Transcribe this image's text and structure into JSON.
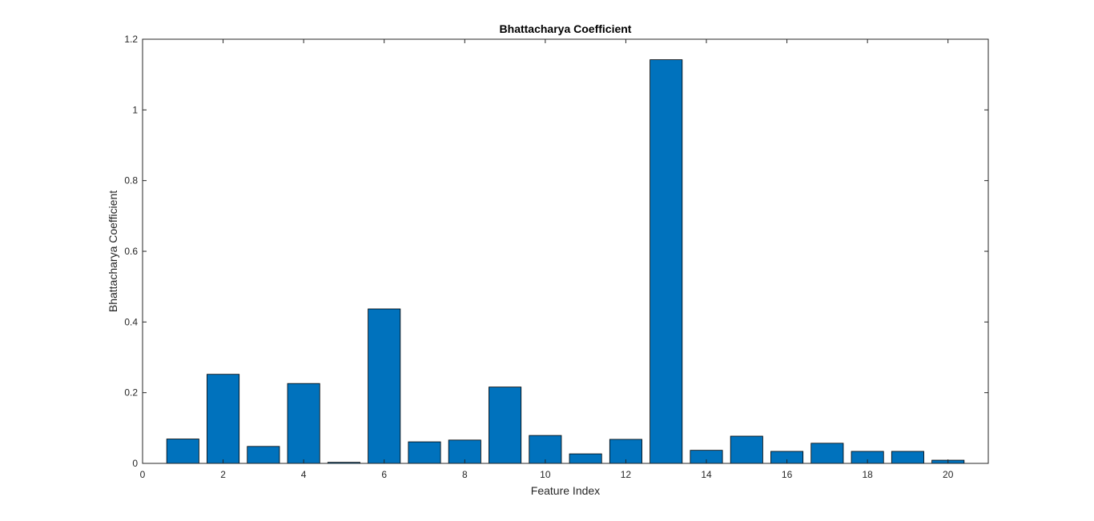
{
  "chart_data": {
    "type": "bar",
    "title": "Bhattacharya Coefficient",
    "xlabel": "Feature Index",
    "ylabel": "Bhattacharya Coefficient",
    "x": [
      1,
      2,
      3,
      4,
      5,
      6,
      7,
      8,
      9,
      10,
      11,
      12,
      13,
      14,
      15,
      16,
      17,
      18,
      19,
      20
    ],
    "values": [
      0.069,
      0.252,
      0.048,
      0.226,
      0.003,
      0.437,
      0.061,
      0.066,
      0.216,
      0.079,
      0.027,
      0.068,
      1.142,
      0.037,
      0.077,
      0.034,
      0.057,
      0.034,
      0.034,
      0.009
    ],
    "xlim": [
      0,
      21
    ],
    "ylim": [
      0,
      1.2
    ],
    "xticks": [
      0,
      2,
      4,
      6,
      8,
      10,
      12,
      14,
      16,
      18,
      20
    ],
    "yticks": [
      0,
      0.2,
      0.4,
      0.6,
      0.8,
      1,
      1.2
    ],
    "yticklabels": [
      "0",
      "0.2",
      "0.4",
      "0.6",
      "0.8",
      "1",
      "1.2"
    ],
    "grid": false,
    "bar_color": "#0072BD",
    "edge_color": "#000000"
  }
}
